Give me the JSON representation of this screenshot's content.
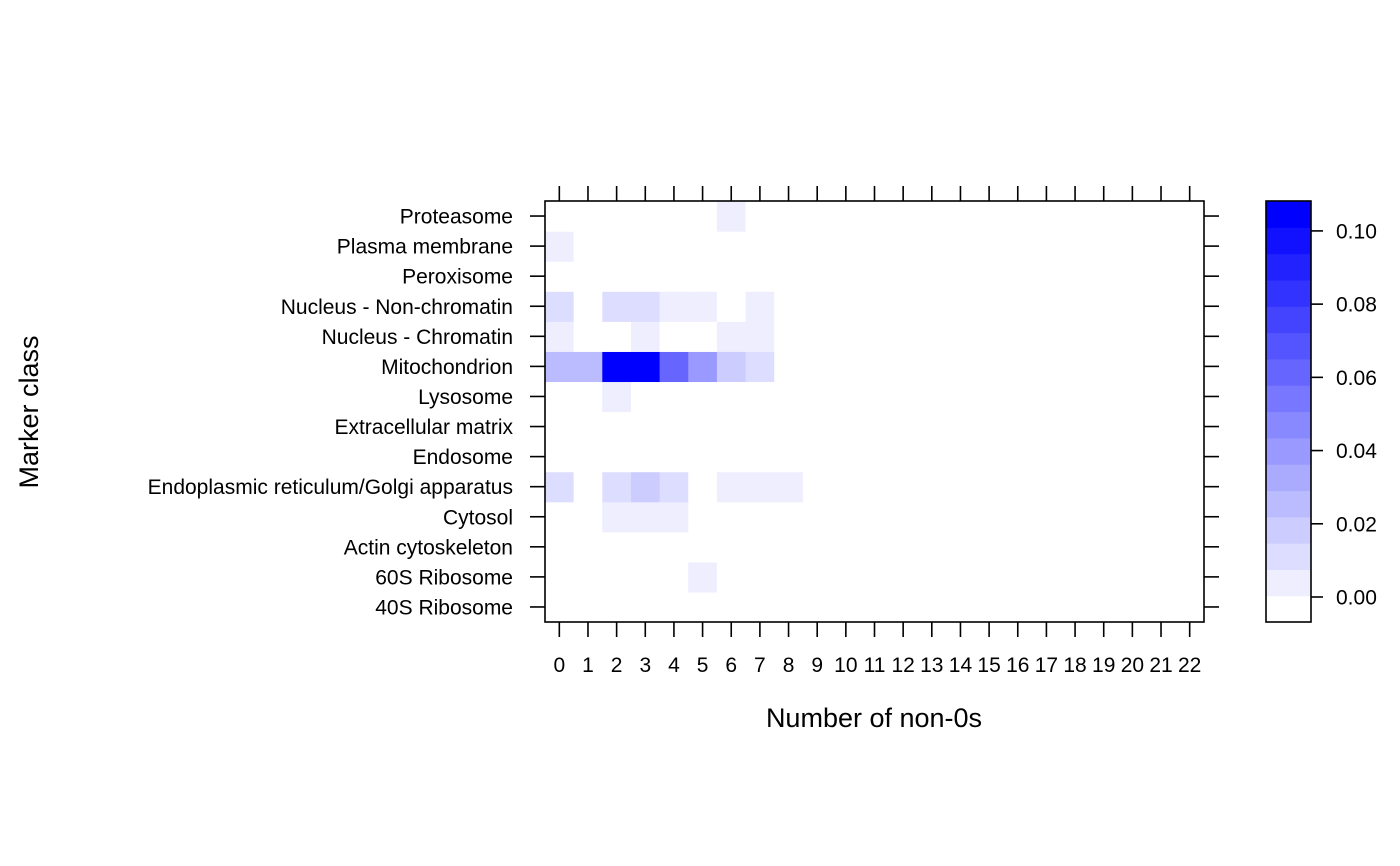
{
  "chart_data": {
    "type": "heatmap",
    "title": "",
    "xlabel": "Number of non-0s",
    "ylabel": "Marker class",
    "x_categories": [
      "0",
      "1",
      "2",
      "3",
      "4",
      "5",
      "6",
      "7",
      "8",
      "9",
      "10",
      "11",
      "12",
      "13",
      "14",
      "15",
      "16",
      "17",
      "18",
      "19",
      "20",
      "21",
      "22"
    ],
    "y_categories": [
      "40S Ribosome",
      "60S Ribosome",
      "Actin cytoskeleton",
      "Cytosol",
      "Endoplasmic reticulum/Golgi apparatus",
      "Endosome",
      "Extracellular matrix",
      "Lysosome",
      "Mitochondrion",
      "Nucleus - Chromatin",
      "Nucleus - Non-chromatin",
      "Peroxisome",
      "Plasma membrane",
      "Proteasome"
    ],
    "values": [
      [
        0.003,
        0.003,
        0.003,
        0.003,
        0.003,
        0.003,
        0.003,
        0.003,
        0.003,
        0.003,
        0,
        0,
        0,
        0,
        0,
        0,
        0,
        0,
        0,
        0,
        0,
        0,
        0
      ],
      [
        0.003,
        0.003,
        0.003,
        0.003,
        0.003,
        0.012,
        0.003,
        0.003,
        0.003,
        0.003,
        0.003,
        0.003,
        0,
        0,
        0,
        0,
        0,
        0,
        0,
        0,
        0,
        0,
        0
      ],
      [
        0.003,
        0.003,
        0.003,
        0.003,
        0.003,
        0.003,
        0.003,
        0.003,
        0.003,
        0.003,
        0,
        0,
        0,
        0,
        0,
        0,
        0,
        0,
        0,
        0,
        0,
        0,
        0
      ],
      [
        0.003,
        0.003,
        0.012,
        0.012,
        0.012,
        0.003,
        0.003,
        0.003,
        0.003,
        0.003,
        0.003,
        0.003,
        0,
        0,
        0,
        0,
        0,
        0,
        0,
        0,
        0,
        0,
        0
      ],
      [
        0.018,
        0.003,
        0.018,
        0.027,
        0.018,
        0.003,
        0.012,
        0.012,
        0.012,
        0.003,
        0.003,
        0.003,
        0.003,
        0.003,
        0.003,
        0.003,
        0,
        0,
        0,
        0,
        0,
        0,
        0
      ],
      [
        0.003,
        0.003,
        0.003,
        0.003,
        0.003,
        0.003,
        0.003,
        0.003,
        0.003,
        0.003,
        0,
        0,
        0,
        0,
        0,
        0,
        0,
        0,
        0,
        0,
        0,
        0,
        0
      ],
      [
        0.003,
        0.003,
        0.003,
        0.003,
        0.003,
        0,
        0,
        0,
        0,
        0,
        0,
        0,
        0,
        0,
        0,
        0,
        0,
        0,
        0,
        0,
        0,
        0,
        0
      ],
      [
        0.003,
        0.003,
        0.012,
        0.003,
        0.003,
        0.003,
        0.003,
        0.003,
        0.003,
        0.003,
        0.003,
        0,
        0,
        0,
        0,
        0,
        0,
        0,
        0,
        0,
        0,
        0,
        0
      ],
      [
        0.033,
        0.033,
        0.11,
        0.11,
        0.07,
        0.045,
        0.027,
        0.018,
        0.003,
        0.003,
        0.003,
        0.003,
        0.003,
        0.003,
        0.003,
        0,
        0,
        0,
        0,
        0,
        0,
        0,
        0
      ],
      [
        0.012,
        0.003,
        0.003,
        0.012,
        0.003,
        0.003,
        0.012,
        0.012,
        0.003,
        0.003,
        0.003,
        0.003,
        0.003,
        0,
        0,
        0,
        0,
        0,
        0,
        0,
        0,
        0,
        0
      ],
      [
        0.018,
        0.003,
        0.018,
        0.018,
        0.012,
        0.012,
        0.003,
        0.012,
        0.003,
        0.003,
        0.003,
        0,
        0,
        0,
        0,
        0,
        0,
        0,
        0,
        0,
        0,
        0,
        0
      ],
      [
        0.003,
        0.003,
        0.003,
        0.003,
        0.003,
        0.003,
        0.003,
        0.003,
        0.003,
        0,
        0,
        0,
        0,
        0,
        0,
        0,
        0,
        0,
        0,
        0,
        0,
        0,
        0
      ],
      [
        0.012,
        0.003,
        0.003,
        0.003,
        0.003,
        0.003,
        0.003,
        0.003,
        0.003,
        0.003,
        0.003,
        0.003,
        0.003,
        0.003,
        0.003,
        0.003,
        0.003,
        0.003,
        0.003,
        0.003,
        0.003,
        0.003,
        0.003
      ],
      [
        0.003,
        0.003,
        0.003,
        0.003,
        0.003,
        0.003,
        0.012,
        0.003,
        0.003,
        0.003,
        0.003,
        0.003,
        0,
        0,
        0,
        0,
        0,
        0,
        0,
        0,
        0,
        0,
        0
      ]
    ],
    "colorbar": {
      "range": [
        0,
        0.115
      ],
      "levels": 16,
      "ticks": [
        0.0,
        0.02,
        0.04,
        0.06,
        0.08,
        0.1
      ],
      "tick_labels": [
        "0.00",
        "0.02",
        "0.04",
        "0.06",
        "0.08",
        "0.10"
      ],
      "low_color": "#ffffff",
      "high_color": "#0000ff"
    },
    "grid": false
  }
}
